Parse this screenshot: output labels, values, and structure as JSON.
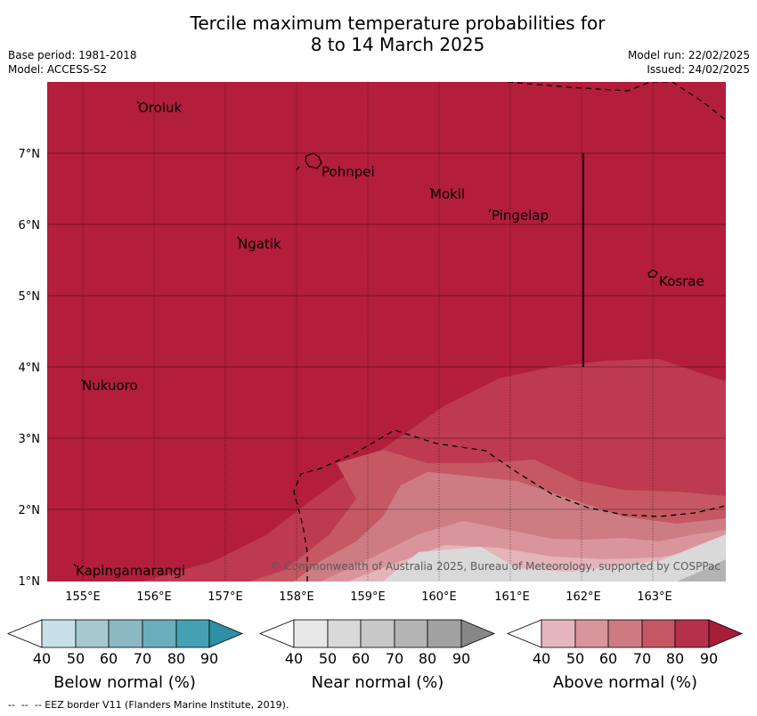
{
  "title_line1": "Tercile maximum temperature probabilities for",
  "title_line2": "8 to 14 March 2025",
  "base_period": "Base period: 1981-2018",
  "model": "Model: ACCESS-S2",
  "model_run": "Model run: 22/02/2025",
  "issued": "Issued: 24/02/2025",
  "map": {
    "lon_ticks": [
      "155°E",
      "156°E",
      "157°E",
      "158°E",
      "159°E",
      "160°E",
      "161°E",
      "162°E",
      "163°E"
    ],
    "lat_ticks": [
      "1°N",
      "2°N",
      "3°N",
      "4°N",
      "5°N",
      "6°N",
      "7°N"
    ],
    "places": [
      "Oroluk",
      "Pohnpei",
      "Mokil",
      "Pingelap",
      "Ngatik",
      "Kosrae",
      "Nukuoro",
      "Kapingamarangi"
    ],
    "copyright": "© Commonwealth of Australia 2025, Bureau of Meteorology, supported by COSPPac",
    "colors": {
      "above_90": "#b21e3b",
      "above_80": "#bd3a50",
      "above_70": "#c55862",
      "above_60": "#cd7c84",
      "above_50": "#d9959b",
      "above_40": "#e4b4b9",
      "near_40": "#e6e6e6",
      "near_50": "#d9d9d9",
      "near_60": "#cccccc",
      "near_70": "#b3b3b3",
      "near_80": "#a0a0a0",
      "near_90": "#888888"
    }
  },
  "legend": {
    "ticks": [
      "40",
      "50",
      "60",
      "70",
      "80",
      "90"
    ],
    "below": {
      "label": "Below normal (%)",
      "colors": [
        "#ffffff",
        "#c8e1e7",
        "#a6c9cf",
        "#8bb8c2",
        "#6aaebd",
        "#44a0b3",
        "#2c8fa6"
      ]
    },
    "near": {
      "label": "Near normal (%)",
      "colors": [
        "#ffffff",
        "#e8e8e8",
        "#d9d9d9",
        "#c8c8c8",
        "#b4b4b4",
        "#a1a1a1",
        "#878787"
      ]
    },
    "above": {
      "label": "Above normal (%)",
      "colors": [
        "#ffffff",
        "#e3b7bd",
        "#d9959b",
        "#ce7a82",
        "#c55765",
        "#b7304b",
        "#a81d37"
      ]
    }
  },
  "footer": "--  --  -- EEZ border V11 (Flanders Marine Institute, 2019)."
}
